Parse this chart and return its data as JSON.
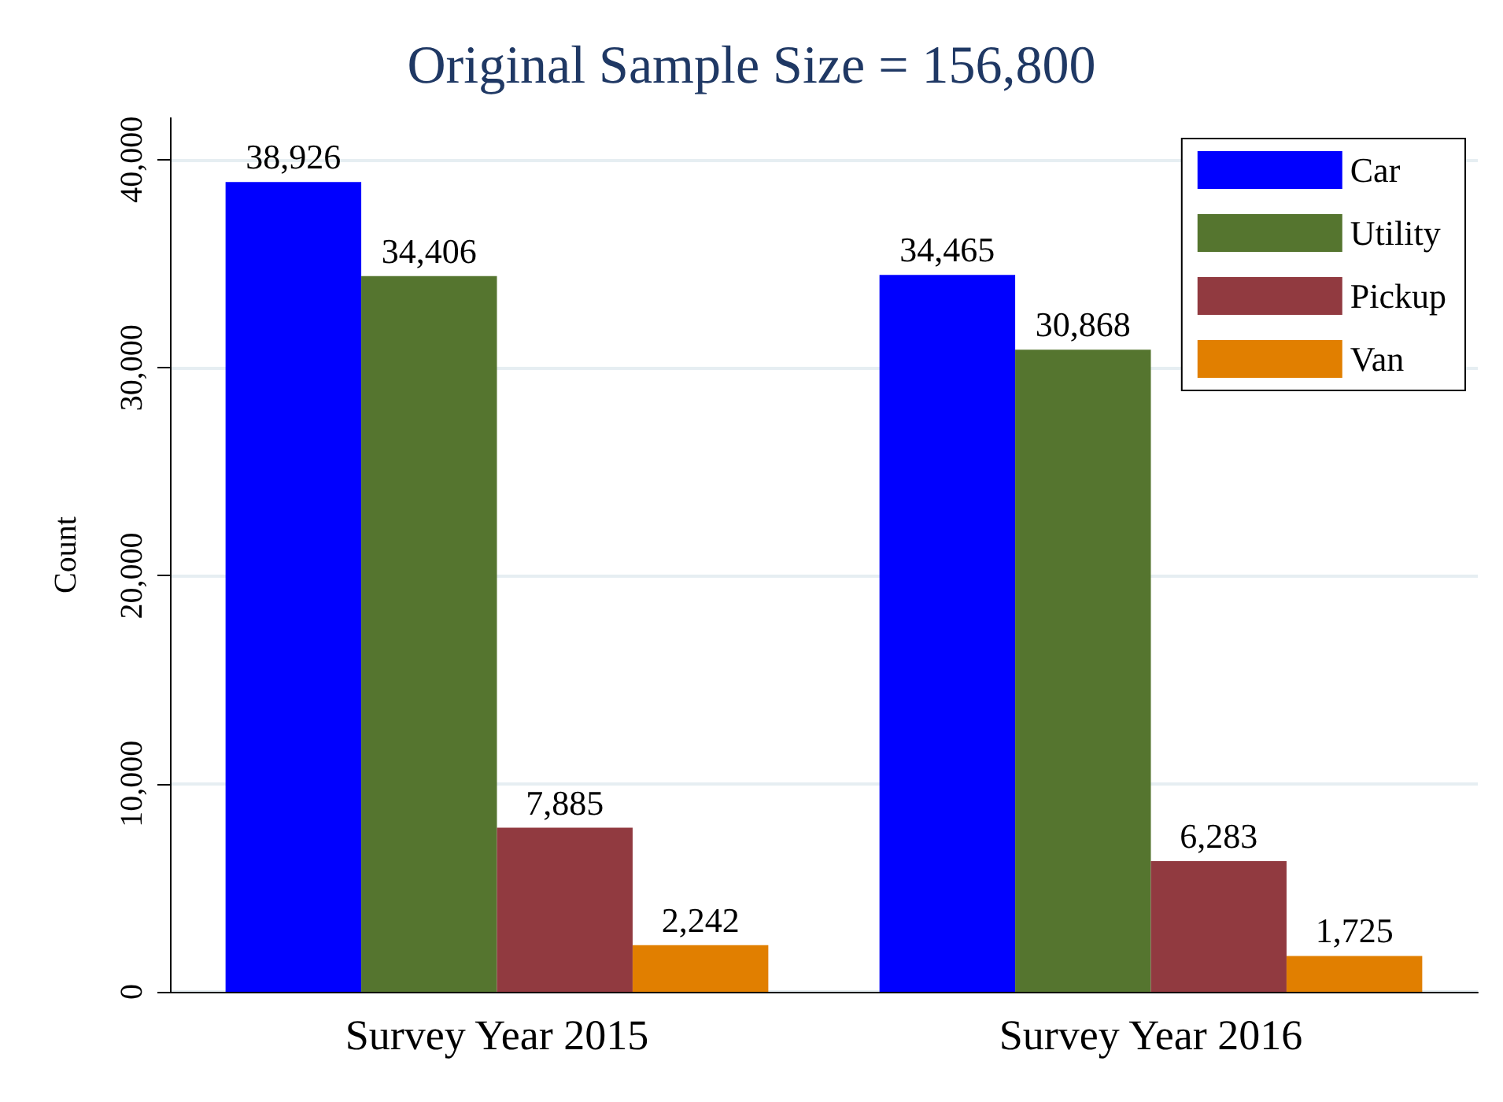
{
  "chart_data": {
    "type": "bar",
    "title": "Original Sample Size = 156,800",
    "ylabel": "Count",
    "categories": [
      "Survey Year 2015",
      "Survey Year 2016"
    ],
    "series": [
      {
        "name": "Car",
        "color": "#0000ff",
        "values": [
          38926,
          34465
        ],
        "value_labels": [
          "38,926",
          "34,465"
        ]
      },
      {
        "name": "Utility",
        "color": "#55752f",
        "values": [
          34406,
          30868
        ],
        "value_labels": [
          "34,406",
          "30,868"
        ]
      },
      {
        "name": "Pickup",
        "color": "#913a40",
        "values": [
          7885,
          6283
        ],
        "value_labels": [
          "7,885",
          "6,283"
        ]
      },
      {
        "name": "Van",
        "color": "#e17f00",
        "values": [
          2242,
          1725
        ],
        "value_labels": [
          "2,242",
          "1,725"
        ]
      }
    ],
    "ylim": [
      0,
      42000
    ],
    "yticks": [
      {
        "value": 0,
        "label": "0"
      },
      {
        "value": 10000,
        "label": "10,000"
      },
      {
        "value": 20000,
        "label": "20,000"
      },
      {
        "value": 30000,
        "label": "30,000"
      },
      {
        "value": 40000,
        "label": "40,000"
      }
    ],
    "grid": "y",
    "legend": "top right"
  }
}
